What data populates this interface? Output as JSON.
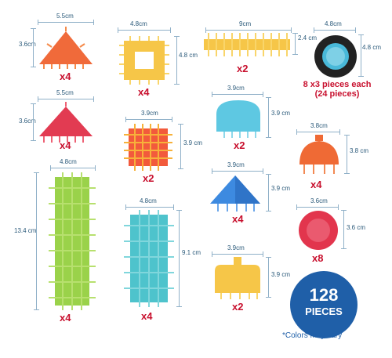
{
  "pieces": [
    {
      "name": "orange-triangle",
      "width": "5.5cm",
      "height": "3.6cm",
      "qty": "x4",
      "color": "#f06a3a"
    },
    {
      "name": "yellow-square-frame",
      "width": "4.8cm",
      "height": "4.8 cm",
      "qty": "x4",
      "color": "#f6c648"
    },
    {
      "name": "yellow-long-bar",
      "width": "9cm",
      "height": "2.4 cm",
      "qty": "x2",
      "color": "#f6c648"
    },
    {
      "name": "black-wheel",
      "width": "4.8cm",
      "height": "4.8 cm",
      "note": "8 x3 pieces each (24 pieces)",
      "color": "#222222"
    },
    {
      "name": "red-triangle",
      "width": "5.5cm",
      "height": "3.6cm",
      "qty": "x4",
      "color": "#e23b52"
    },
    {
      "name": "orange-square",
      "width": "3.9cm",
      "height": "3.9 cm",
      "qty": "x2",
      "color": "#f25a3c"
    },
    {
      "name": "blue-window-piece",
      "width": "3.9cm",
      "height": "3.9 cm",
      "qty": "x2",
      "color": "#5ec8e2"
    },
    {
      "name": "orange-dome",
      "width": "3.8cm",
      "height": "3.8 cm",
      "qty": "x4",
      "color": "#ef6a35"
    },
    {
      "name": "green-long-block",
      "width": "4.8cm",
      "height": "13.4 cm",
      "qty": "x4",
      "color": "#9ad24a"
    },
    {
      "name": "teal-block",
      "width": "4.8cm",
      "height": "9.1 cm",
      "qty": "x4",
      "color": "#4ec3cc"
    },
    {
      "name": "blue-pyramid",
      "width": "3.9cm",
      "height": "3.9 cm",
      "qty": "x4",
      "color": "#3d8ae0"
    },
    {
      "name": "red-circle",
      "width": "3.6cm",
      "height": "3.6 cm",
      "qty": "x8",
      "color": "#e2354d"
    },
    {
      "name": "yellow-window-piece",
      "width": "3.9cm",
      "height": "3.9 cm",
      "qty": "x2",
      "color": "#f6c648"
    }
  ],
  "badge": {
    "count": "128",
    "label": "PIECES",
    "color": "#1f5fa8"
  },
  "footnote": "*Colors may vary"
}
